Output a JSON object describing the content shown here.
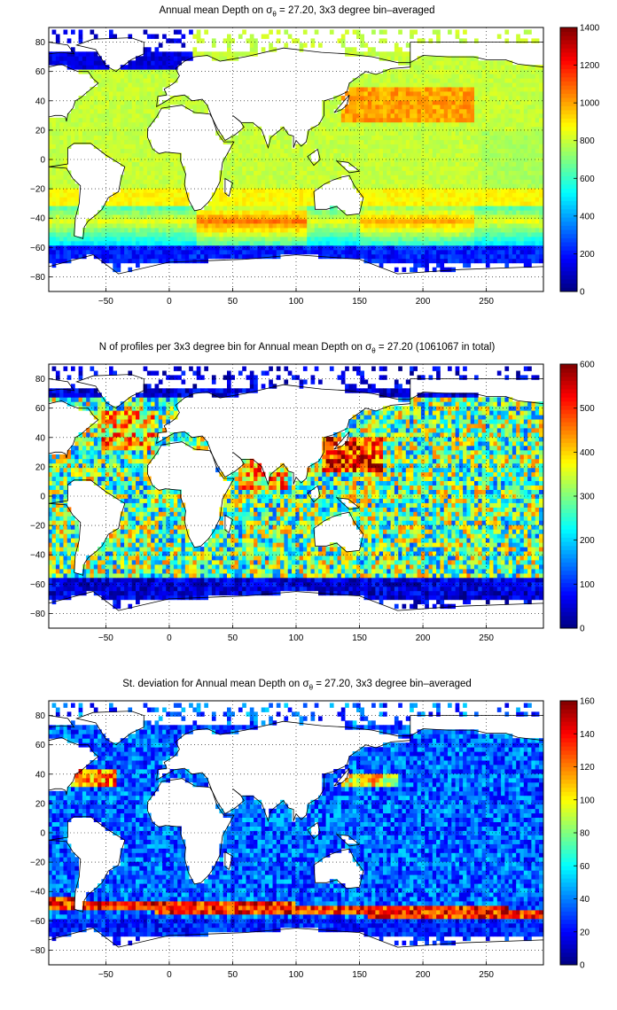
{
  "colormap": "jet",
  "colors": {
    "land": "#ffffff",
    "coast": "#000000",
    "grid": "#000000"
  },
  "chart_data": [
    {
      "type": "heatmap",
      "title_parts": [
        "Annual mean Depth on ",
        "σ",
        "θ",
        " = 27.20, 3x3 degree bin–averaged"
      ],
      "xticks": [
        "−50",
        "0",
        "50",
        "100",
        "150",
        "200",
        "250"
      ],
      "yticks": [
        "80",
        "60",
        "40",
        "20",
        "0",
        "−20",
        "−40",
        "−60",
        "−80"
      ],
      "colorbar_ticks": [
        "1400",
        "1200",
        "1000",
        "800",
        "600",
        "400",
        "200",
        "0"
      ],
      "xlim": [
        -95,
        295
      ],
      "ylim": [
        -90,
        90
      ],
      "clim": [
        0,
        1400
      ],
      "grid": true,
      "field": "depth"
    },
    {
      "type": "heatmap",
      "title_parts": [
        "N of profiles per 3x3 degree bin for Annual mean Depth on ",
        "σ",
        "θ",
        " = 27.20 (1061067 in total)"
      ],
      "xticks": [
        "−50",
        "0",
        "50",
        "100",
        "150",
        "200",
        "250"
      ],
      "yticks": [
        "80",
        "60",
        "40",
        "20",
        "0",
        "−20",
        "−40",
        "−60",
        "−80"
      ],
      "colorbar_ticks": [
        "600",
        "500",
        "400",
        "300",
        "200",
        "100",
        "0"
      ],
      "xlim": [
        -95,
        295
      ],
      "ylim": [
        -90,
        90
      ],
      "clim": [
        0,
        600
      ],
      "grid": true,
      "field": "count"
    },
    {
      "type": "heatmap",
      "title_parts": [
        "St. deviation for Annual mean Depth on ",
        "σ",
        "θ",
        " = 27.20, 3x3 degree bin–averaged"
      ],
      "xticks": [
        "−50",
        "0",
        "50",
        "100",
        "150",
        "200",
        "250"
      ],
      "yticks": [
        "80",
        "60",
        "40",
        "20",
        "0",
        "−20",
        "−40",
        "−60",
        "−80"
      ],
      "colorbar_ticks": [
        "160",
        "140",
        "120",
        "100",
        "80",
        "60",
        "40",
        "20",
        "0"
      ],
      "xlim": [
        -95,
        295
      ],
      "ylim": [
        -90,
        90
      ],
      "clim": [
        0,
        160
      ],
      "grid": true,
      "field": "std"
    }
  ]
}
